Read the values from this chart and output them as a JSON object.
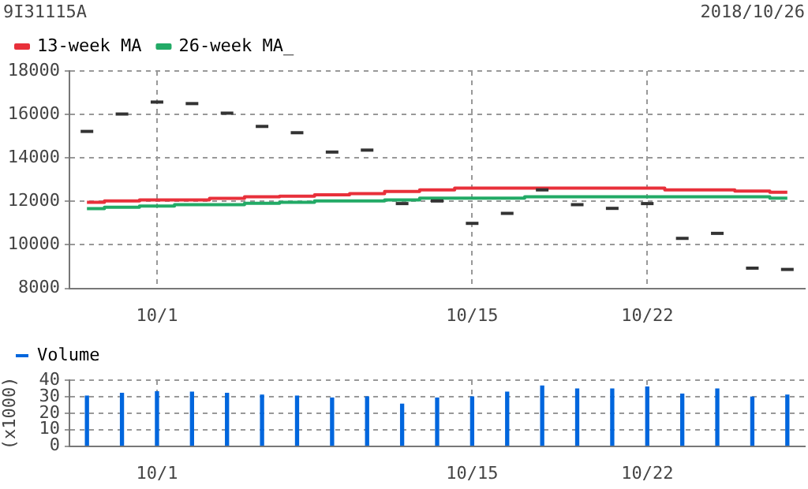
{
  "chart_data": [
    {
      "type": "candlestick",
      "title": "9I31115A",
      "annotations": [
        "2018/10/26"
      ],
      "categories": [
        null,
        null,
        "10/1",
        null,
        null,
        null,
        null,
        null,
        null,
        null,
        null,
        "10/15",
        null,
        null,
        null,
        null,
        "10/22",
        null,
        null,
        null,
        null
      ],
      "ohlc": [
        [
          15220,
          15220,
          15220,
          15220
        ],
        [
          16020,
          16020,
          16020,
          16020
        ],
        [
          16570,
          16570,
          16570,
          16570
        ],
        [
          16500,
          16500,
          16500,
          16500
        ],
        [
          16060,
          16060,
          16060,
          16060
        ],
        [
          15450,
          15450,
          15450,
          15450
        ],
        [
          15160,
          15160,
          15160,
          15160
        ],
        [
          14270,
          14270,
          14270,
          14270
        ],
        [
          14360,
          14360,
          14360,
          14360
        ],
        [
          11900,
          11900,
          11900,
          11900
        ],
        [
          12020,
          12020,
          12020,
          12020
        ],
        [
          10990,
          10990,
          10990,
          10990
        ],
        [
          11450,
          11450,
          11450,
          11450
        ],
        [
          12530,
          12530,
          12530,
          12530
        ],
        [
          11850,
          11850,
          11850,
          11850
        ],
        [
          11680,
          11680,
          11680,
          11680
        ],
        [
          11900,
          11900,
          11900,
          11900
        ],
        [
          10300,
          10300,
          10300,
          10300
        ],
        [
          10530,
          10530,
          10530,
          10530
        ],
        [
          8930,
          8930,
          8930,
          8930
        ],
        [
          8870,
          8870,
          8870,
          8870
        ]
      ],
      "color": "#333333",
      "series": [
        {
          "name": "13-week MA",
          "type": "step",
          "color": "#e8303a",
          "values": [
            11960,
            12020,
            12070,
            12070,
            12140,
            12210,
            12240,
            12300,
            12360,
            12460,
            12530,
            12610,
            12610,
            12610,
            12610,
            12610,
            12610,
            12530,
            12530,
            12480,
            12420
          ]
        },
        {
          "name": "26-week MA_",
          "type": "step",
          "color": "#22aa66",
          "values": [
            11670,
            11730,
            11790,
            11850,
            11850,
            11910,
            11960,
            12020,
            12020,
            12070,
            12150,
            12150,
            12150,
            12210,
            12210,
            12210,
            12210,
            12210,
            12210,
            12210,
            12150
          ]
        }
      ],
      "ylim": [
        8000,
        18000
      ],
      "yticks": [
        8000,
        10000,
        12000,
        14000,
        16000,
        18000
      ],
      "grid": true,
      "legend": "top left"
    },
    {
      "type": "bar",
      "ylabel": "(x1000)",
      "categories": [
        null,
        null,
        "10/1",
        null,
        null,
        null,
        null,
        null,
        null,
        null,
        null,
        "10/15",
        null,
        null,
        null,
        null,
        "10/22",
        null,
        null,
        null,
        null
      ],
      "series": [
        {
          "name": "Volume",
          "color": "#0066dd",
          "values": [
            30.4,
            32,
            33,
            32.8,
            32,
            31,
            30.4,
            29.1,
            29.9,
            25.4,
            29.1,
            29.9,
            32.8,
            36.5,
            34.7,
            34.7,
            35.9,
            31.6,
            34.7,
            29.7,
            31
          ]
        }
      ],
      "ylim": [
        0,
        40
      ],
      "yticks": [
        0,
        10,
        20,
        30,
        40
      ],
      "grid": true,
      "legend": "top left"
    }
  ]
}
